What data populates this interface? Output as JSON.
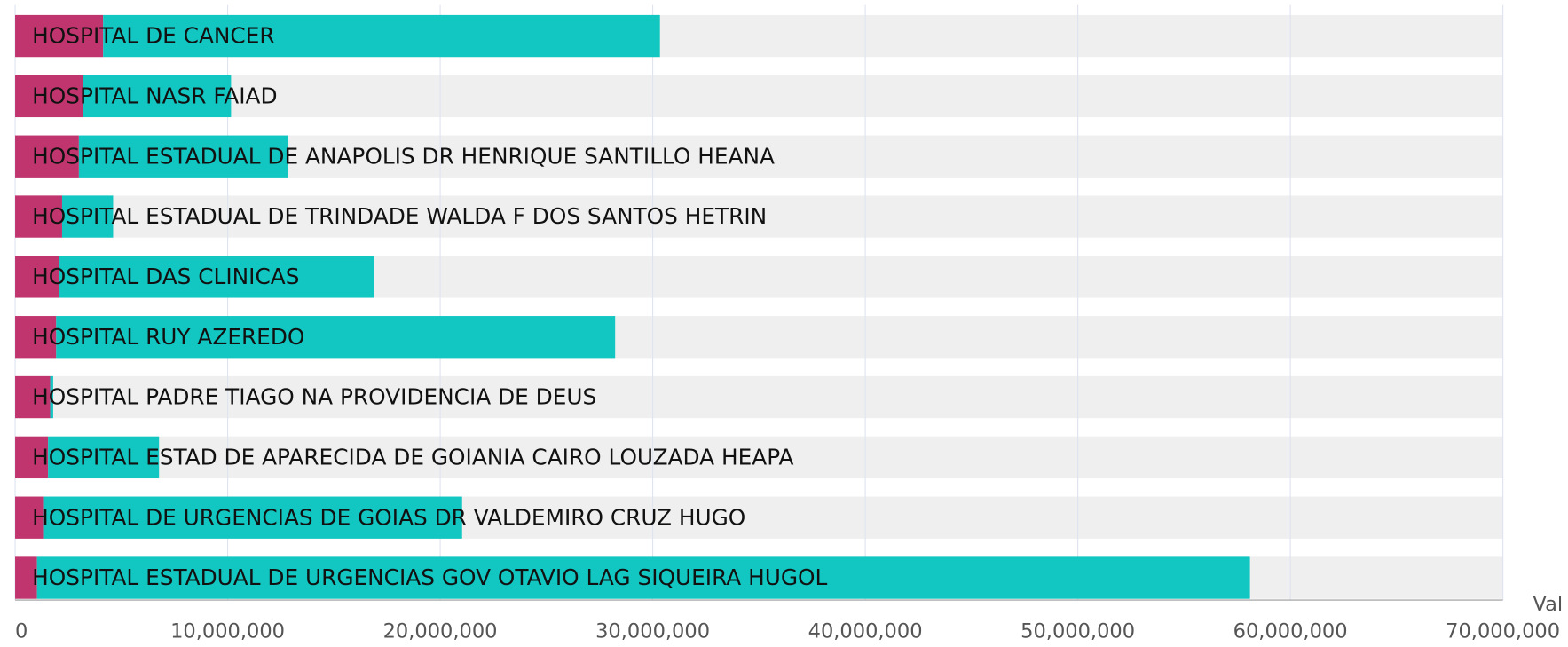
{
  "chart_data": {
    "type": "bar",
    "stacked": true,
    "orientation": "horizontal",
    "x_label": "Val",
    "categories": [
      "HOSPITAL DE CANCER",
      "HOSPITAL NASR FAIAD",
      "HOSPITAL ESTADUAL DE ANAPOLIS DR HENRIQUE SANTILLO HEANA",
      "HOSPITAL ESTADUAL DE TRINDADE WALDA F DOS SANTOS HETRIN",
      "HOSPITAL DAS CLINICAS",
      "HOSPITAL RUY AZEREDO",
      "HOSPITAL PADRE TIAGO NA PROVIDENCIA DE DEUS",
      "HOSPITAL ESTAD DE APARECIDA DE GOIANIA CAIRO LOUZADA HEAPA",
      "HOSPITAL DE URGENCIAS DE GOIAS DR VALDEMIRO CRUZ HUGO",
      "HOSPITAL ESTADUAL DE URGENCIAS GOV OTAVIO LAG SIQUEIRA HUGOL"
    ],
    "series": [
      {
        "color": "#c0356e",
        "values": [
          4140000,
          3200000,
          3000000,
          2210000,
          2070000,
          1930000,
          1650000,
          1550000,
          1360000,
          1030000
        ]
      },
      {
        "color": "#12c6c2",
        "values": [
          26200000,
          6960000,
          9840000,
          2400000,
          14820000,
          26300000,
          140000,
          5220000,
          19670000,
          57070000
        ]
      }
    ],
    "xlim": [
      0,
      70000000
    ],
    "xticks": [
      0,
      {
        "value": 10000000,
        "label": "10,000,000"
      },
      {
        "value": 20000000,
        "label": "20,000,000"
      },
      {
        "value": 30000000,
        "label": "30,000,000"
      },
      {
        "value": 40000000,
        "label": "40,000,000"
      },
      {
        "value": 50000000,
        "label": "50,000,000"
      },
      {
        "value": 60000000,
        "label": "60,000,000"
      },
      {
        "value": 70000000,
        "label": "70,000,000"
      }
    ],
    "grid": true
  }
}
